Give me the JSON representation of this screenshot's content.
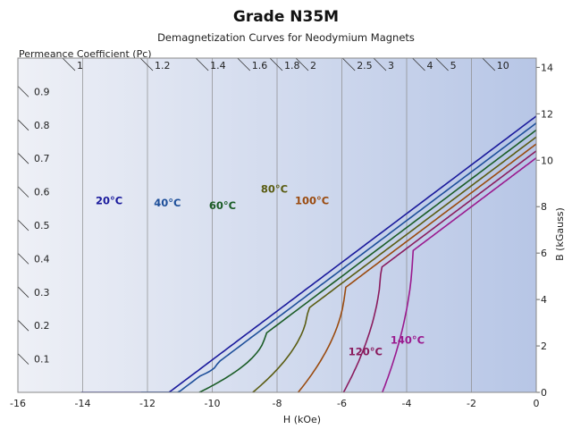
{
  "chart_data": {
    "type": "line",
    "title": "Grade N35M",
    "subtitle": "Demagnetization Curves for Neodymium Magnets",
    "xlabel": "H (kOe)",
    "ylabel": "B (kGauss)",
    "xlim": [
      -16,
      0
    ],
    "ylim": [
      0,
      14.4
    ],
    "x_ticks": [
      "-16",
      "-14",
      "-12",
      "-10",
      "-8",
      "-6",
      "-4",
      "-2",
      "0"
    ],
    "y_ticks": [
      "0",
      "2",
      "4",
      "6",
      "8",
      "10",
      "12",
      "14"
    ],
    "left_axis_title": "Permeance Coefficient (Pc)",
    "left_axis_ticks": [
      {
        "label": "0.1",
        "value": 0.1
      },
      {
        "label": "0.2",
        "value": 0.2
      },
      {
        "label": "0.3",
        "value": 0.3
      },
      {
        "label": "0.4",
        "value": 0.4
      },
      {
        "label": "0.5",
        "value": 0.5
      },
      {
        "label": "0.6",
        "value": 0.6
      },
      {
        "label": "0.7",
        "value": 0.7
      },
      {
        "label": "0.8",
        "value": 0.8
      },
      {
        "label": "0.9",
        "value": 0.9
      }
    ],
    "top_axis_ticks": [
      {
        "label": "1",
        "value": 1
      },
      {
        "label": "1.2",
        "value": 1.2
      },
      {
        "label": "1.4",
        "value": 1.4
      },
      {
        "label": "1.6",
        "value": 1.6
      },
      {
        "label": "1.8",
        "value": 1.8
      },
      {
        "label": "2",
        "value": 2
      },
      {
        "label": "2.5",
        "value": 2.5
      },
      {
        "label": "3",
        "value": 3
      },
      {
        "label": "4",
        "value": 4
      },
      {
        "label": "5",
        "value": 5
      },
      {
        "label": "10",
        "value": 10
      }
    ],
    "series": [
      {
        "name": "20°C",
        "label": "20°C",
        "color": "#1a1a9c",
        "Br": 11.9,
        "Hk": -13.85,
        "Hci": -14.05,
        "knee_B": 5.0,
        "label_at": [
          -13.6,
          8.1
        ]
      },
      {
        "name": "40°C",
        "label": "40°C",
        "color": "#1e4f9a",
        "Br": 11.6,
        "Hk": -12.0,
        "Hci": -12.2,
        "knee_B": 5.0,
        "label_at": [
          -11.8,
          8.0
        ]
      },
      {
        "name": "60°C",
        "label": "60°C",
        "color": "#1a5c26",
        "Br": 11.3,
        "Hk": -10.2,
        "Hci": -10.4,
        "knee_B": 5.0,
        "label_at": [
          -10.1,
          7.9
        ]
      },
      {
        "name": "80°C",
        "label": "80°C",
        "color": "#5a5c12",
        "Br": 11.0,
        "Hk": -8.6,
        "Hci": -8.75,
        "knee_B": 5.5,
        "label_at": [
          -8.5,
          8.6
        ]
      },
      {
        "name": "100°C",
        "label": "100°C",
        "color": "#9a4a0e",
        "Br": 10.7,
        "Hk": -7.2,
        "Hci": -7.35,
        "knee_B": 5.0,
        "label_at": [
          -7.45,
          8.1
        ]
      },
      {
        "name": "120°C",
        "label": "120°C",
        "color": "#8a1c5e",
        "Br": 10.4,
        "Hk": -5.85,
        "Hci": -5.95,
        "knee_B": 5.0,
        "label_at": [
          -5.8,
          1.6
        ]
      },
      {
        "name": "140°C",
        "label": "140°C",
        "color": "#9a1a8e",
        "Br": 10.1,
        "Hk": -4.65,
        "Hci": -4.75,
        "knee_B": 5.0,
        "label_at": [
          -4.5,
          2.1
        ]
      }
    ]
  }
}
